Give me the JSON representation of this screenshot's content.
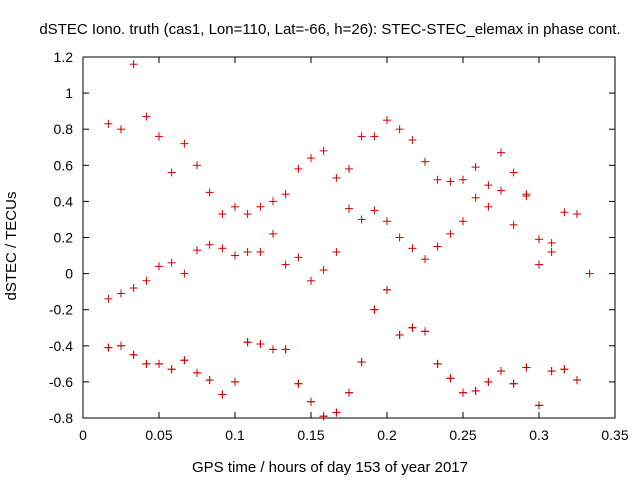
{
  "chart_data": {
    "type": "scatter",
    "title": "dSTEC Iono. truth (cas1, Lon=110, Lat=-66, h=26): STEC-STEC_elemax in phase cont.",
    "xlabel": "GPS time / hours of day 153 of year 2017",
    "ylabel": "dSTEC  / TECUs",
    "xlim": [
      0,
      0.35
    ],
    "ylim": [
      -0.8,
      1.2
    ],
    "x_ticks": [
      "0",
      "0.05",
      "0.1",
      "0.15",
      "0.2",
      "0.25",
      "0.3",
      "0.35"
    ],
    "y_ticks": [
      "-0.8",
      "-0.6",
      "-0.4",
      "-0.2",
      "0",
      "0.2",
      "0.4",
      "0.6",
      "0.8",
      "1",
      "1.2"
    ],
    "x_tick_values": [
      0,
      0.05,
      0.1,
      0.15,
      0.2,
      0.25,
      0.3,
      0.35
    ],
    "y_tick_values": [
      -0.8,
      -0.6,
      -0.4,
      -0.2,
      0,
      0.2,
      0.4,
      0.6,
      0.8,
      1,
      1.2
    ],
    "marker": "plus",
    "color": "#cc0000",
    "grid": false,
    "series": [
      {
        "name": "dSTEC",
        "x": [
          0.0167,
          0.025,
          0.0333,
          0.0417,
          0.05,
          0.0583,
          0.0667,
          0.075,
          0.0833,
          0.0917,
          0.1,
          0.1083,
          0.1167,
          0.125,
          0.1333,
          0.1417,
          0.15,
          0.1583,
          0.1667,
          0.175,
          0.1833,
          0.1917,
          0.2,
          0.2083,
          0.2167,
          0.225,
          0.2333,
          0.2417,
          0.25,
          0.2583,
          0.2667,
          0.275,
          0.2833,
          0.2917,
          0.3,
          0.3083,
          0.3167,
          0.325,
          0.3333,
          0.0167,
          0.025,
          0.0333,
          0.0417,
          0.05,
          0.0583,
          0.0667,
          0.075,
          0.0833,
          0.0917,
          0.1,
          0.1083,
          0.1167,
          0.125,
          0.1333,
          0.1417,
          0.15,
          0.1583,
          0.1667,
          0.175,
          0.1833,
          0.1917,
          0.2,
          0.2083,
          0.2167,
          0.225,
          0.2333,
          0.2417,
          0.25,
          0.2583,
          0.2667,
          0.275,
          0.2833,
          0.2917,
          0.3,
          0.3083,
          0.0167,
          0.025,
          0.0333,
          0.0417,
          0.05,
          0.0583,
          0.0667,
          0.075,
          0.0833,
          0.0917,
          0.1,
          0.1083,
          0.1167,
          0.125,
          0.1333,
          0.1417,
          0.15,
          0.1583,
          0.1667,
          0.175,
          0.1833,
          0.1917,
          0.2,
          0.2083,
          0.2167,
          0.225,
          0.2333,
          0.2417,
          0.25,
          0.2583,
          0.2667,
          0.275,
          0.2833,
          0.2917,
          0.3,
          0.3083,
          0.3167,
          0.325,
          0.0167,
          0.025,
          0.0333,
          0.0417,
          0.05,
          0.0583,
          0.0667,
          0.075,
          0.0833,
          0.0917,
          0.1,
          0.1083,
          0.1167,
          0.125,
          0.1333,
          0.1417,
          0.15,
          0.1583,
          0.1667,
          0.175,
          0.1833,
          0.1917,
          0.2,
          0.2083,
          0.2167,
          0.225,
          0.2333,
          0.2417,
          0.25,
          0.2583,
          0.2667,
          0.275,
          0.2833,
          0.2917,
          0.3,
          0.3083,
          0.3167,
          0.325
        ],
        "y": [
          -0.14,
          -0.11,
          -0.08,
          -0.04,
          0.04,
          0.06,
          0.0,
          0.13,
          0.16,
          0.14,
          0.1,
          0.12,
          0.12,
          0.22,
          0.05,
          0.09,
          -0.04,
          0.02,
          0.12,
          0.36,
          0.3,
          0.35,
          0.29,
          0.2,
          0.14,
          0.08,
          0.15,
          0.22,
          0.29,
          0.42,
          0.37,
          0.46,
          0.27,
          0.43,
          0.05,
          0.12,
          0.34,
          0.33,
          0.0,
          0.83,
          0.8,
          1.16,
          0.87,
          0.76,
          0.56,
          0.72,
          0.6,
          0.45,
          0.33,
          0.37,
          0.33,
          0.37,
          0.4,
          0.44,
          0.58,
          0.64,
          0.68,
          0.53,
          0.58,
          0.76,
          0.76,
          0.85,
          0.8,
          0.74,
          0.62,
          0.52,
          0.51,
          0.52,
          0.59,
          0.49,
          0.67,
          0.56,
          0.44,
          0.19,
          0.17,
          -0.41,
          -0.4,
          -0.45,
          -0.5,
          -0.5,
          -0.53,
          -0.48,
          -0.55,
          -0.59,
          -0.67,
          -0.6,
          -0.38,
          -0.39,
          -0.42,
          -0.42,
          -0.61,
          -0.71,
          -0.79,
          -0.77,
          -0.66,
          -0.49,
          -0.2,
          -0.09,
          -0.34,
          -0.3,
          -0.32,
          -0.5,
          -0.58,
          -0.66,
          -0.65,
          -0.6,
          -0.54,
          -0.61,
          -0.52,
          -0.73,
          -0.54,
          -0.53,
          -0.59,
          -0.41,
          -0.4,
          -0.45,
          -0.5,
          -0.5,
          -0.53,
          -0.48,
          -0.55,
          -0.59,
          -0.67,
          -0.6,
          -0.38,
          -0.39,
          -0.42,
          -0.42,
          -0.61,
          -0.71,
          -0.79,
          -0.77,
          -0.66,
          -0.49,
          -0.2,
          -0.09,
          -0.34,
          -0.3,
          -0.32,
          -0.5,
          -0.58,
          -0.66,
          -0.65,
          -0.6,
          -0.54,
          -0.61,
          -0.52,
          -0.73,
          -0.54,
          -0.53,
          -0.59
        ]
      }
    ]
  }
}
